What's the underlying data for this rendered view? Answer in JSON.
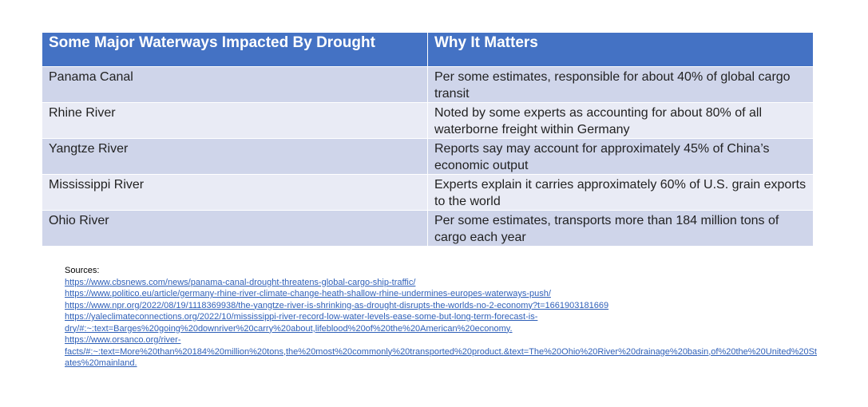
{
  "table": {
    "header": [
      "Some Major Waterways Impacted By Drought",
      "Why It Matters"
    ],
    "rows": [
      [
        "Panama Canal",
        "Per some estimates, responsible for about 40% of global cargo transit"
      ],
      [
        "Rhine River",
        "Noted by some experts as accounting for about 80% of all waterborne freight within Germany"
      ],
      [
        "Yangtze River",
        "Reports say may account for approximately 45% of China’s economic output"
      ],
      [
        "Mississippi River",
        "Experts explain it carries approximately 60% of U.S. grain exports to the world"
      ],
      [
        "Ohio River",
        "Per some estimates, transports more than 184 million tons of cargo each year"
      ]
    ]
  },
  "sources": {
    "label": "Sources:",
    "links": [
      "https://www.cbsnews.com/news/panama-canal-drought-threatens-global-cargo-ship-traffic/",
      "https://www.politico.eu/article/germany-rhine-river-climate-change-heath-shallow-rhine-undermines-europes-waterways-push/",
      "https://www.npr.org/2022/08/19/1118369938/the-yangtze-river-is-shrinking-as-drought-disrupts-the-worlds-no-2-economy?t=1661903181669",
      "https://yaleclimateconnections.org/2022/10/mississippi-river-record-low-water-levels-ease-some-but-long-term-forecast-is-dry/#:~:text=Barges%20going%20downriver%20carry%20about,lifeblood%20of%20the%20American%20economy.",
      "https://www.orsanco.org/river-facts/#:~:text=More%20than%20184%20million%20tons,the%20most%20commonly%20transported%20product.&text=The%20Ohio%20River%20drainage%20basin,of%20the%20United%20States%20mainland."
    ]
  }
}
